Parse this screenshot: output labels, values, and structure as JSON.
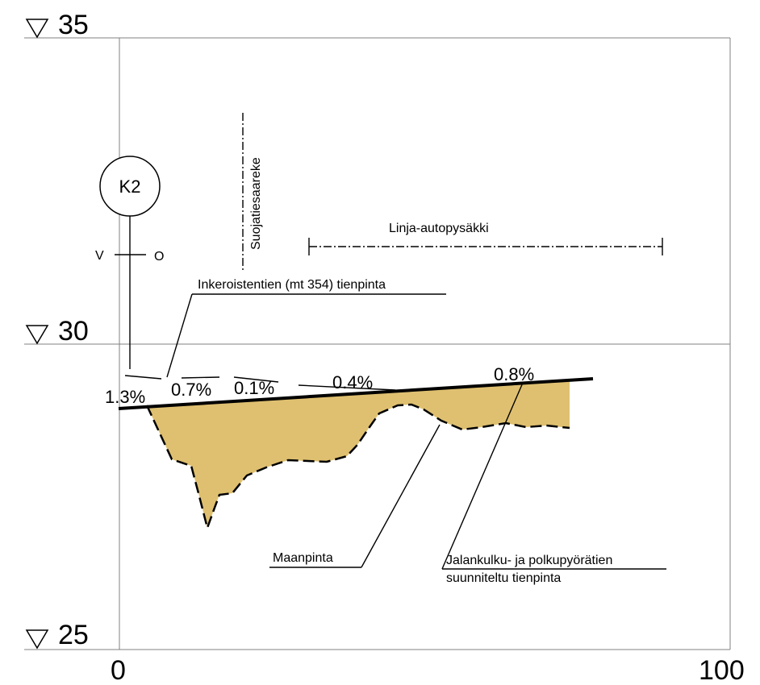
{
  "levels": {
    "top": "35",
    "middle": "30",
    "bottom": "25"
  },
  "axis": {
    "x_start": "0",
    "x_end": "100"
  },
  "marker": {
    "id": "K2",
    "left": "V",
    "right": "O"
  },
  "ditch_label": "Suojatiesaareke",
  "bus_stop_label": "Linja-autopysäkki",
  "road_surface_label": "Inkeroistentien (mt 354) tienpinta",
  "slopes": [
    "1.3%",
    "0.7%",
    "0.1%",
    "0.4%",
    "0.8%"
  ],
  "ground_label": "Maanpinta",
  "planned_label_line1": "Jalankulku- ja polkupyörätien",
  "planned_label_line2": "suunniteltu tienpinta",
  "colors": {
    "fill": "#dfc070",
    "line": "#000000",
    "grid": "#808080"
  }
}
